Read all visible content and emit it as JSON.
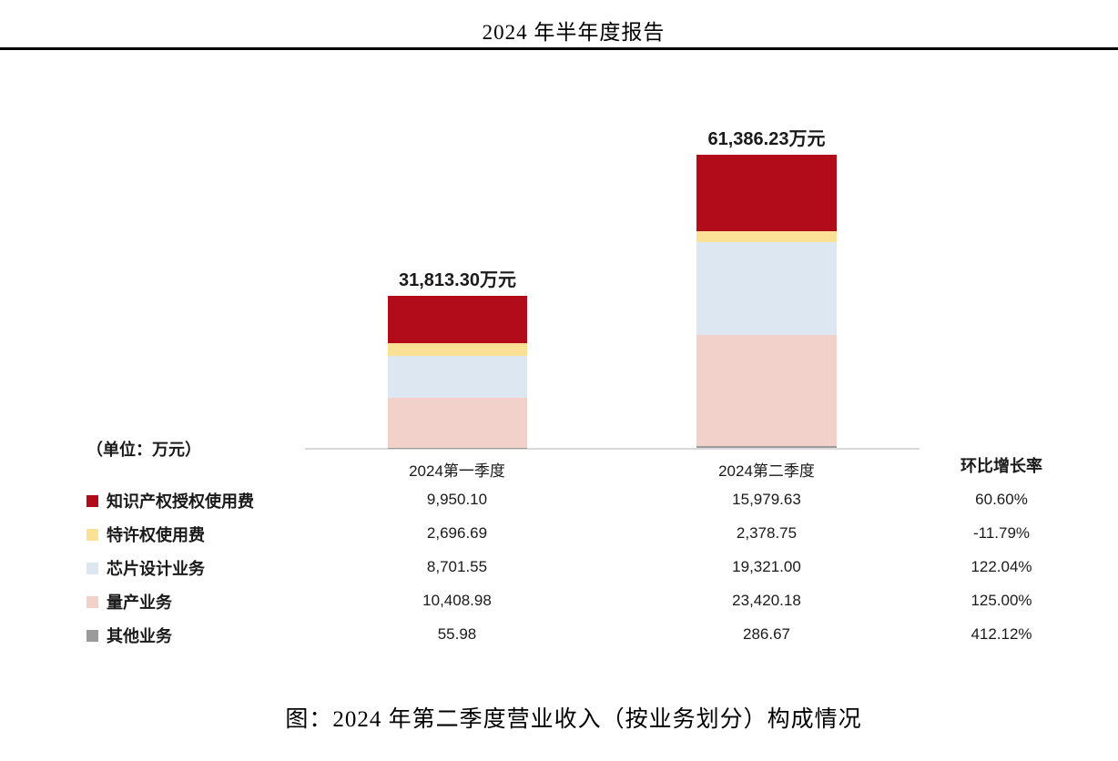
{
  "header": {
    "title": "2024 年半年度报告"
  },
  "unit_label": "（单位：万元）",
  "growth_header": "环比增长率",
  "caption": "图：2024 年第二季度营业收入（按业务划分）构成情况",
  "chart_data": {
    "type": "bar",
    "stacked": true,
    "unit": "万元",
    "legend_position": "left-table",
    "grid": false,
    "categories": [
      "2024第一季度",
      "2024第二季度"
    ],
    "series": [
      {
        "name": "知识产权授权使用费",
        "color": "#b20b1a",
        "values": [
          9950.1,
          15979.63
        ],
        "value_labels": [
          "9,950.10",
          "15,979.63"
        ],
        "growth": "60.60%"
      },
      {
        "name": "特许权使用费",
        "color": "#fae196",
        "values": [
          2696.69,
          2378.75
        ],
        "value_labels": [
          "2,696.69",
          "2,378.75"
        ],
        "growth": "-11.79%"
      },
      {
        "name": "芯片设计业务",
        "color": "#dde7f2",
        "values": [
          8701.55,
          19321.0
        ],
        "value_labels": [
          "8,701.55",
          "19,321.00"
        ],
        "growth": "122.04%"
      },
      {
        "name": "量产业务",
        "color": "#f2d1ca",
        "values": [
          10408.98,
          23420.18
        ],
        "value_labels": [
          "10,408.98",
          "23,420.18"
        ],
        "growth": "125.00%"
      },
      {
        "name": "其他业务",
        "color": "#9b9b9b",
        "values": [
          55.98,
          286.67
        ],
        "value_labels": [
          "55.98",
          "286.67"
        ],
        "growth": "412.12%"
      }
    ],
    "stack_order_bottom_to_top": [
      "其他业务",
      "量产业务",
      "芯片设计业务",
      "特许权使用费",
      "知识产权授权使用费"
    ],
    "totals": [
      31813.3,
      61386.23
    ],
    "total_labels": [
      "31,813.30万元",
      "61,386.23万元"
    ],
    "axis_color": "#d9d9d9",
    "ylim": [
      0,
      61386.23
    ]
  }
}
